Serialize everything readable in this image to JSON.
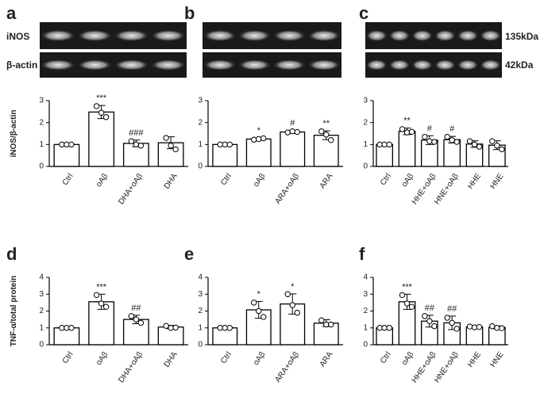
{
  "blot_labels": {
    "rows": [
      "iNOS",
      "β-actin"
    ],
    "sizes": [
      "135kDa",
      "42kDa"
    ]
  },
  "chart_data": [
    {
      "type": "bar",
      "letter": "a",
      "y_label": "iNOS/β-actin",
      "color": "#ffffff",
      "categories": [
        "Ctrl",
        "oAβ",
        "DHA+oAβ",
        "DHA"
      ],
      "values": [
        1,
        2.48,
        1.05,
        1.08
      ],
      "errors": [
        0,
        0.3,
        0.15,
        0.27
      ],
      "significance": [
        null,
        "***",
        "###",
        null
      ],
      "points": [
        [
          1,
          1,
          1
        ],
        [
          2.75,
          2.45,
          2.25
        ],
        [
          1.15,
          1.0,
          0.95
        ],
        [
          1.3,
          0.95,
          0.78
        ]
      ],
      "ylim": [
        0,
        3
      ],
      "yticks": [
        0,
        1,
        2,
        3
      ]
    },
    {
      "type": "bar",
      "letter": "b",
      "color": "#ffffff",
      "categories": [
        "Ctrl",
        "oAβ",
        "ARA+oAβ",
        "ARA"
      ],
      "values": [
        1,
        1.25,
        1.57,
        1.42
      ],
      "errors": [
        0,
        0.05,
        0.07,
        0.2
      ],
      "significance": [
        null,
        "*",
        "#",
        "**"
      ],
      "points": [
        [
          1,
          1,
          1
        ],
        [
          1.22,
          1.25,
          1.28
        ],
        [
          1.55,
          1.6,
          1.57
        ],
        [
          1.6,
          1.45,
          1.2
        ]
      ],
      "ylim": [
        0,
        3
      ],
      "yticks": [
        0,
        1,
        2,
        3
      ]
    },
    {
      "type": "bar",
      "letter": "c",
      "color": "#ffffff",
      "categories": [
        "Ctrl",
        "oAβ",
        "HHE+oAβ",
        "HNE+oAβ",
        "HHE",
        "HNE"
      ],
      "values": [
        1,
        1.6,
        1.2,
        1.22,
        1.02,
        0.97
      ],
      "errors": [
        0,
        0.15,
        0.2,
        0.15,
        0.15,
        0.2
      ],
      "significance": [
        null,
        "**",
        "#",
        "#",
        null,
        null
      ],
      "points": [
        [
          1,
          1,
          1
        ],
        [
          1.7,
          1.55,
          1.58
        ],
        [
          1.35,
          1.15,
          1.12
        ],
        [
          1.35,
          1.2,
          1.12
        ],
        [
          1.15,
          1.0,
          0.9
        ],
        [
          1.15,
          0.95,
          0.78
        ]
      ],
      "ylim": [
        0,
        3
      ],
      "yticks": [
        0,
        1,
        2,
        3
      ]
    },
    {
      "type": "bar",
      "letter": "d",
      "y_label": "TNF-α/total protein",
      "color": "#ffffff",
      "categories": [
        "Ctrl",
        "oAβ",
        "DHA+oAβ",
        "DHA"
      ],
      "values": [
        1,
        2.55,
        1.5,
        1.05
      ],
      "errors": [
        0,
        0.45,
        0.25,
        0.1
      ],
      "significance": [
        null,
        "***",
        "##",
        null
      ],
      "points": [
        [
          1,
          1,
          1
        ],
        [
          2.95,
          2.45,
          2.25
        ],
        [
          1.7,
          1.5,
          1.3
        ],
        [
          1.12,
          1.0,
          1.02
        ]
      ],
      "ylim": [
        0,
        4
      ],
      "yticks": [
        0,
        1,
        2,
        3,
        4
      ]
    },
    {
      "type": "bar",
      "letter": "e",
      "color": "#ffffff",
      "categories": [
        "Ctrl",
        "oAβ",
        "ARA+oAβ",
        "ARA"
      ],
      "values": [
        1,
        2.07,
        2.42,
        1.28
      ],
      "errors": [
        0,
        0.5,
        0.6,
        0.2
      ],
      "significance": [
        null,
        "*",
        "*",
        null
      ],
      "points": [
        [
          1,
          1,
          1
        ],
        [
          2.5,
          2.0,
          1.65
        ],
        [
          3.0,
          2.35,
          1.9
        ],
        [
          1.45,
          1.2,
          1.2
        ]
      ],
      "ylim": [
        0,
        4
      ],
      "yticks": [
        0,
        1,
        2,
        3,
        4
      ]
    },
    {
      "type": "bar",
      "letter": "f",
      "color": "#ffffff",
      "categories": [
        "Ctrl",
        "oAβ",
        "HHE+oAβ",
        "HNE+oAβ",
        "HHE",
        "HNE"
      ],
      "values": [
        1,
        2.55,
        1.4,
        1.3,
        1.05,
        1.03
      ],
      "errors": [
        0,
        0.45,
        0.35,
        0.4,
        0.05,
        0.08
      ],
      "significance": [
        null,
        "***",
        "##",
        "##",
        null,
        null
      ],
      "points": [
        [
          1,
          1,
          1
        ],
        [
          2.95,
          2.45,
          2.25
        ],
        [
          1.7,
          1.4,
          1.1
        ],
        [
          1.6,
          1.3,
          0.95
        ],
        [
          1.08,
          1.03,
          1.05
        ],
        [
          1.1,
          1.0,
          0.98
        ]
      ],
      "ylim": [
        0,
        4
      ],
      "yticks": [
        0,
        1,
        2,
        3,
        4
      ]
    }
  ]
}
